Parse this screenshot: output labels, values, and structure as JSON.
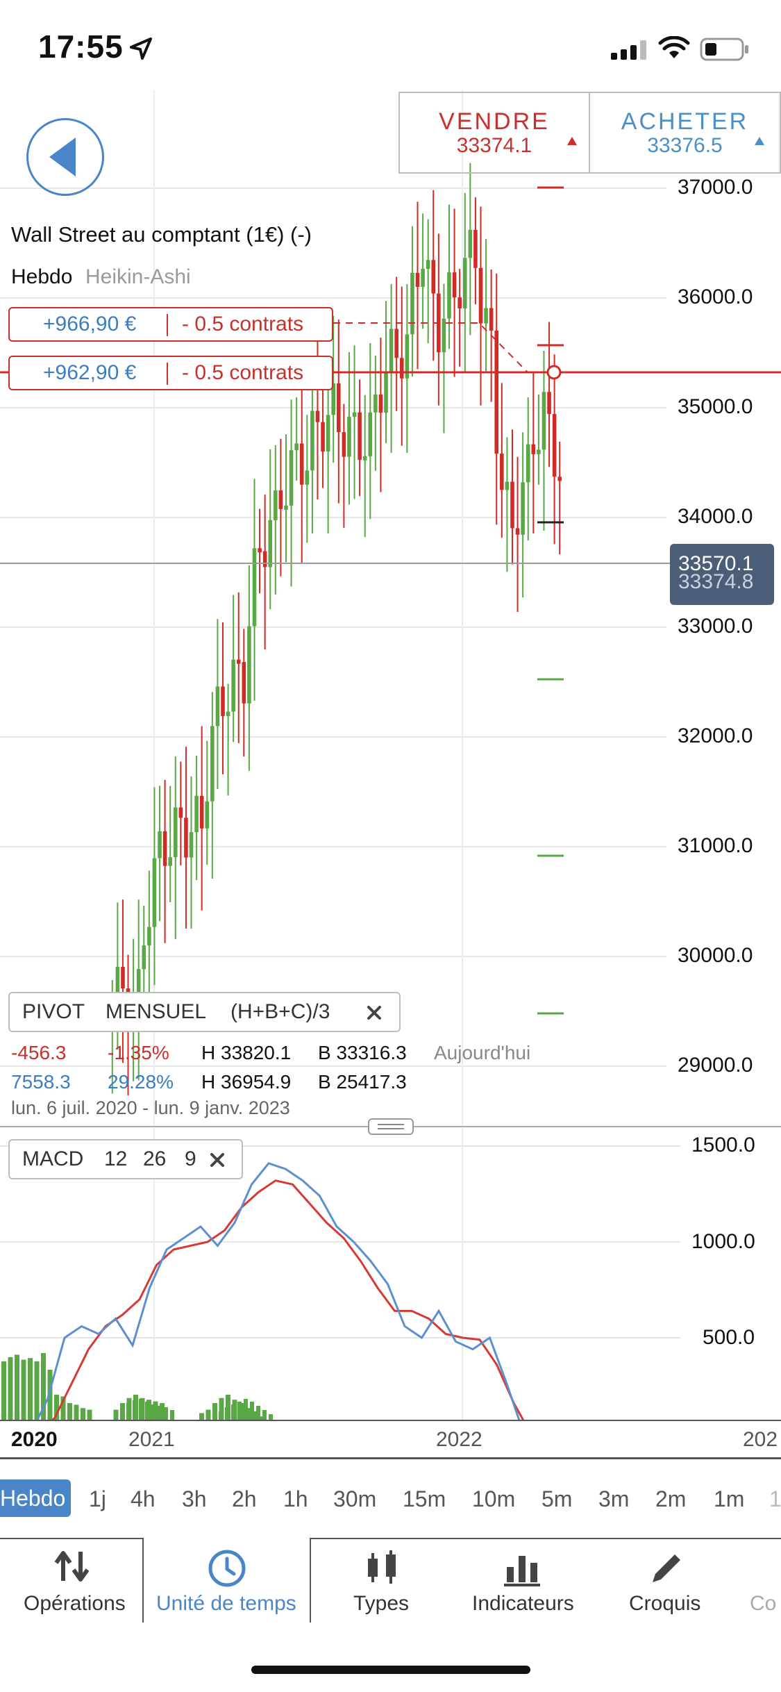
{
  "status": {
    "time": "17:55"
  },
  "order": {
    "sell_label": "VENDRE",
    "sell_price": "33374.1",
    "buy_label": "ACHETER",
    "buy_price": "33376.5"
  },
  "chart": {
    "instrument": "Wall Street au comptant (1€) (-)",
    "period": "Hebdo",
    "style": "Heikin-Ashi",
    "positions": [
      {
        "pnl": "+966,90 €",
        "qty": "- 0.5 contrats"
      },
      {
        "pnl": "+962,90 €",
        "qty": "- 0.5 contrats"
      }
    ],
    "price_axis": [
      "37000.0",
      "36000.0",
      "35000.0",
      "34000.0",
      "33000.0",
      "32000.0",
      "31000.0",
      "30000.0",
      "29000.0"
    ],
    "current_price": "33570.1",
    "current_price_behind": "33374.8"
  },
  "pivot": {
    "title": "PIVOT",
    "period": "MENSUEL",
    "formula": "(H+B+C)/3",
    "row1": {
      "change": "-456.3",
      "pct": "-1.35%",
      "high": "H 33820.1",
      "low": "B 33316.3",
      "label": "Aujourd'hui"
    },
    "row2": {
      "change": "7558.3",
      "pct": "29.28%",
      "high": "H 36954.9",
      "low": "B 25417.3"
    },
    "range": "lun. 6 juil. 2020 - lun. 9 janv. 2023"
  },
  "macd": {
    "title": "MACD",
    "p1": "12",
    "p2": "26",
    "p3": "9",
    "axis": [
      "1500.0",
      "1000.0",
      "500.0"
    ]
  },
  "x_axis": [
    "2020",
    "2021",
    "2022",
    "202"
  ],
  "timeframes": [
    "Hebdo",
    "1j",
    "4h",
    "3h",
    "2h",
    "1h",
    "30m",
    "15m",
    "10m",
    "5m",
    "3m",
    "2m",
    "1m",
    "1"
  ],
  "tabs": [
    "Opérations",
    "Unité de temps",
    "Types",
    "Indicateurs",
    "Croquis",
    "Co"
  ],
  "colors": {
    "up": "#5aa845",
    "down": "#d12b27",
    "accent": "#4a85c8",
    "macd_line": "#5b8fd0",
    "signal_line": "#d63a34"
  }
}
